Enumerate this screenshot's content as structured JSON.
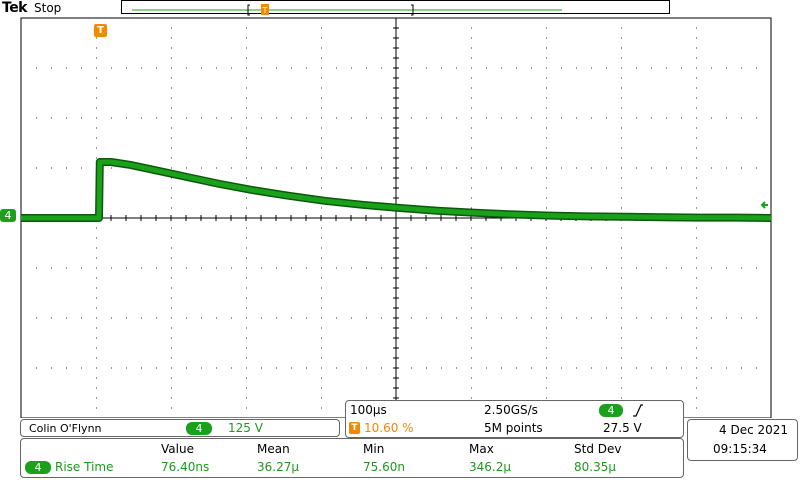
{
  "header": {
    "brand": "Tek",
    "status": "Stop"
  },
  "channel": {
    "number": "4",
    "label": "Colin O'Flynn",
    "scale": "125 V"
  },
  "timebase": {
    "per_div": "100µs",
    "sample_rate": "2.50GS/s",
    "trigger_position": "10.60 %",
    "record_length": "5M points",
    "trigger_channel": "4",
    "trigger_level": "27.5 V",
    "trigger_slope_icon": "rising-edge-icon"
  },
  "datetime": {
    "date": "4 Dec  2021",
    "time": "09:15:34"
  },
  "measurements": {
    "headers": [
      "Value",
      "Mean",
      "Min",
      "Max",
      "Std Dev"
    ],
    "rows": [
      {
        "channel": "4",
        "name": "Rise Time",
        "value": "76.40ns",
        "mean": "36.27µ",
        "min": "75.60n",
        "max": "346.2µ",
        "std_dev": "80.35µ"
      }
    ]
  },
  "markers": {
    "trigger_marker": "T",
    "ground_marker": "4"
  },
  "colors": {
    "trace": "#1aa01a",
    "trigger": "#f08a00",
    "grid": "#000000"
  },
  "chart_data": {
    "type": "line",
    "title": "",
    "xlabel": "",
    "ylabel": "",
    "grid": true,
    "divisions": {
      "x": 10,
      "y": 8
    },
    "units": {
      "x": "µs",
      "y": "V"
    },
    "xlim": [
      -105,
      895
    ],
    "ylim": [
      -500,
      500
    ],
    "series": [
      {
        "x": [
          -105,
          -10,
          -1,
          0,
          5,
          15,
          40,
          80,
          120,
          160,
          200,
          250,
          300,
          350,
          400,
          450,
          500,
          550,
          600,
          650,
          700,
          750,
          800,
          850,
          895
        ],
        "values": [
          0,
          0,
          0,
          140,
          140,
          140,
          133,
          117,
          101,
          85,
          71,
          56,
          43,
          33,
          25,
          18,
          13,
          9,
          6,
          4,
          3,
          2,
          1,
          1,
          0
        ]
      }
    ]
  }
}
